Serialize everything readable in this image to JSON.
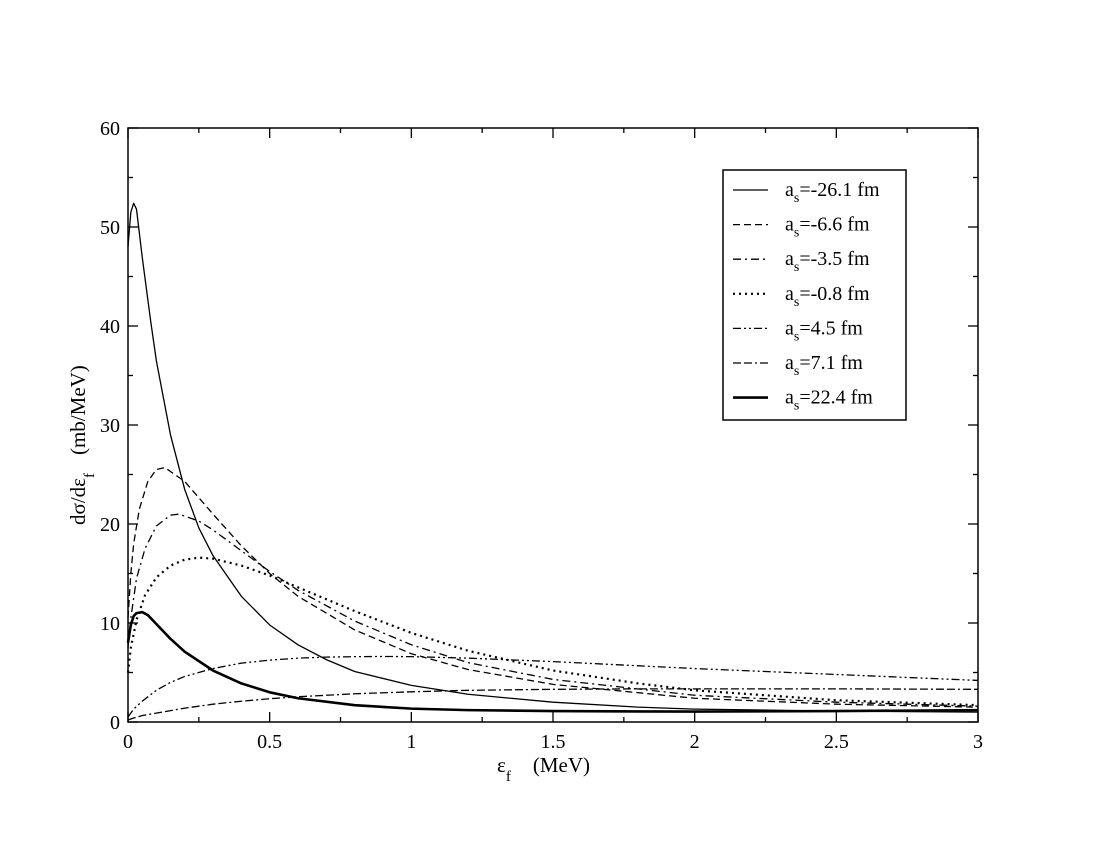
{
  "chart_data": {
    "type": "line",
    "xlabel": {
      "main": "ε",
      "sub": "f",
      "unit": "(MeV)"
    },
    "ylabel": {
      "main": "dσ/dε",
      "sub": "f",
      "unit": "(mb/MeV)"
    },
    "xlim": [
      0,
      3
    ],
    "ylim": [
      0,
      60
    ],
    "xticks": [
      0,
      0.5,
      1,
      1.5,
      2,
      2.5,
      3
    ],
    "xtick_labels": [
      "0",
      "0.5",
      "1",
      "1.5",
      "2",
      "2.5",
      "3"
    ],
    "yticks": [
      0,
      10,
      20,
      30,
      40,
      50,
      60
    ],
    "ytick_labels": [
      "0",
      "10",
      "20",
      "30",
      "40",
      "50",
      "60"
    ],
    "grid": false,
    "legend_position": "top-right",
    "series": [
      {
        "name": "a_s=-26.1 fm",
        "label_main": "a",
        "label_sub": "s",
        "label_rest": "=-26.1 fm",
        "style": "solid",
        "x": [
          0,
          0.01,
          0.02,
          0.03,
          0.05,
          0.08,
          0.1,
          0.15,
          0.2,
          0.25,
          0.3,
          0.4,
          0.5,
          0.6,
          0.7,
          0.8,
          1.0,
          1.2,
          1.5,
          1.8,
          2.0,
          2.5,
          3.0
        ],
        "y": [
          48.0,
          51.5,
          52.4,
          51.8,
          47.0,
          40.5,
          36.5,
          29.0,
          23.5,
          19.6,
          16.8,
          12.7,
          9.8,
          7.8,
          6.3,
          5.1,
          3.7,
          2.8,
          2.0,
          1.5,
          1.3,
          1.1,
          1.0
        ]
      },
      {
        "name": "a_s=-6.6 fm",
        "label_main": "a",
        "label_sub": "s",
        "label_rest": "=-6.6 fm",
        "style": "dashed",
        "x": [
          0,
          0.01,
          0.02,
          0.04,
          0.07,
          0.1,
          0.13,
          0.2,
          0.3,
          0.4,
          0.5,
          0.6,
          0.8,
          1.0,
          1.2,
          1.5,
          2.0,
          2.5,
          3.0
        ],
        "y": [
          10.5,
          15.0,
          18.0,
          21.5,
          24.3,
          25.5,
          25.7,
          24.3,
          21.0,
          17.8,
          15.0,
          12.7,
          9.3,
          6.9,
          5.3,
          3.8,
          2.4,
          1.8,
          1.5
        ]
      },
      {
        "name": "a_s=-3.5 fm",
        "label_main": "a",
        "label_sub": "s",
        "label_rest": "=-3.5 fm",
        "style": "dashdot",
        "x": [
          0,
          0.01,
          0.03,
          0.06,
          0.1,
          0.15,
          0.18,
          0.25,
          0.3,
          0.4,
          0.5,
          0.6,
          0.8,
          1.0,
          1.2,
          1.5,
          2.0,
          2.5,
          3.0
        ],
        "y": [
          7.5,
          10.5,
          14.5,
          17.5,
          19.8,
          20.9,
          21.0,
          20.3,
          19.4,
          17.3,
          15.2,
          13.3,
          10.2,
          7.8,
          6.0,
          4.3,
          2.7,
          2.0,
          1.6
        ]
      },
      {
        "name": "a_s=-0.8 fm",
        "label_main": "a",
        "label_sub": "s",
        "label_rest": "=-0.8 fm",
        "style": "dotted",
        "x": [
          0,
          0.01,
          0.03,
          0.06,
          0.1,
          0.15,
          0.2,
          0.25,
          0.3,
          0.4,
          0.5,
          0.6,
          0.8,
          1.0,
          1.2,
          1.5,
          1.8,
          2.0,
          2.5,
          3.0
        ],
        "y": [
          5.0,
          7.5,
          10.3,
          12.8,
          14.6,
          15.8,
          16.4,
          16.6,
          16.5,
          15.8,
          14.8,
          13.6,
          11.2,
          9.0,
          7.2,
          5.2,
          3.9,
          3.2,
          2.2,
          1.7
        ]
      },
      {
        "name": "a_s=4.5 fm",
        "label_main": "a",
        "label_sub": "s",
        "label_rest": "=4.5 fm",
        "style": "dashdotdot",
        "x": [
          0,
          0.02,
          0.05,
          0.1,
          0.15,
          0.2,
          0.3,
          0.4,
          0.5,
          0.6,
          0.7,
          0.8,
          0.9,
          1.0,
          1.2,
          1.5,
          2.0,
          2.5,
          3.0
        ],
        "y": [
          0.5,
          1.3,
          2.1,
          3.2,
          4.0,
          4.6,
          5.4,
          5.95,
          6.25,
          6.45,
          6.55,
          6.6,
          6.62,
          6.6,
          6.45,
          6.1,
          5.4,
          4.8,
          4.2
        ]
      },
      {
        "name": "a_s=7.1 fm",
        "label_main": "a",
        "label_sub": "s",
        "label_rest": "=7.1 fm",
        "style": "dashdash-dot",
        "x": [
          0,
          0.02,
          0.05,
          0.1,
          0.2,
          0.3,
          0.4,
          0.5,
          0.6,
          0.8,
          1.0,
          1.2,
          1.5,
          1.8,
          2.0,
          2.5,
          3.0
        ],
        "y": [
          0.2,
          0.4,
          0.65,
          0.9,
          1.4,
          1.8,
          2.1,
          2.35,
          2.55,
          2.85,
          3.05,
          3.2,
          3.3,
          3.35,
          3.35,
          3.35,
          3.3
        ]
      },
      {
        "name": "a_s=22.4 fm",
        "label_main": "a",
        "label_sub": "s",
        "label_rest": "=22.4 fm",
        "style": "thick",
        "x": [
          0,
          0.01,
          0.02,
          0.03,
          0.05,
          0.07,
          0.1,
          0.15,
          0.2,
          0.3,
          0.4,
          0.5,
          0.6,
          0.8,
          1.0,
          1.2,
          1.5,
          2.0,
          2.5,
          3.0
        ],
        "y": [
          8.0,
          9.8,
          10.7,
          11.0,
          11.1,
          10.8,
          9.9,
          8.4,
          7.1,
          5.2,
          3.9,
          3.0,
          2.4,
          1.7,
          1.35,
          1.2,
          1.1,
          1.05,
          1.1,
          1.2
        ]
      }
    ]
  }
}
